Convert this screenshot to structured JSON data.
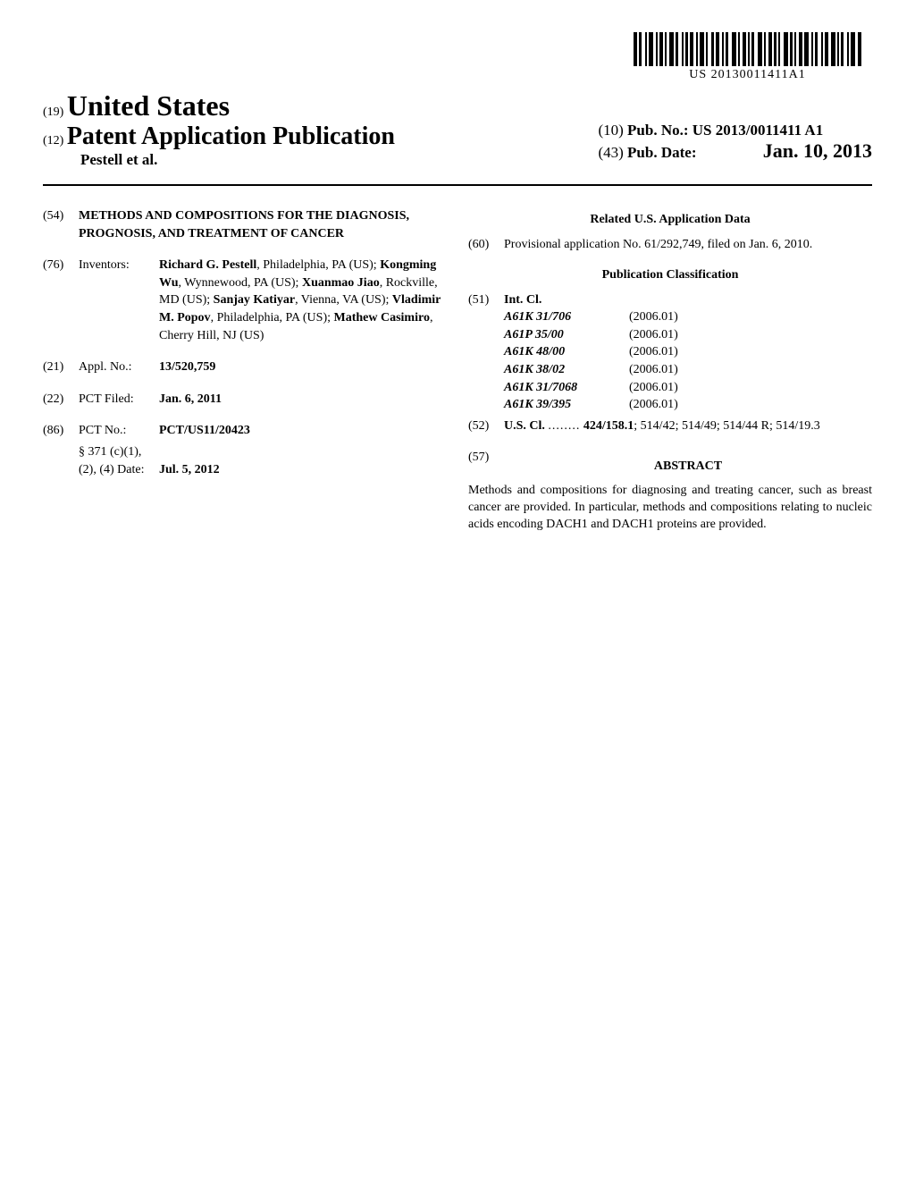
{
  "barcode": {
    "text": "US 20130011411A1"
  },
  "header": {
    "country_code": "(19)",
    "country_name": "United States",
    "pub_type_code": "(12)",
    "pub_type": "Patent Application Publication",
    "authors": "Pestell et al.",
    "pub_no_code": "(10)",
    "pub_no_label": "Pub. No.:",
    "pub_no": "US 2013/0011411 A1",
    "pub_date_code": "(43)",
    "pub_date_label": "Pub. Date:",
    "pub_date": "Jan. 10, 2013"
  },
  "left": {
    "title_code": "(54)",
    "title": "METHODS AND COMPOSITIONS FOR THE DIAGNOSIS, PROGNOSIS, AND TREATMENT OF CANCER",
    "inventors_code": "(76)",
    "inventors_label": "Inventors:",
    "inventors": [
      {
        "name": "Richard G. Pestell",
        "loc": "Philadelphia, PA (US)"
      },
      {
        "name": "Kongming Wu",
        "loc": "Wynnewood, PA (US)"
      },
      {
        "name": "Xuanmao Jiao",
        "loc": "Rockville, MD (US)"
      },
      {
        "name": "Sanjay Katiyar",
        "loc": "Vienna, VA (US)"
      },
      {
        "name": "Vladimir M. Popov",
        "loc": "Philadelphia, PA (US)"
      },
      {
        "name": "Mathew Casimiro",
        "loc": "Cherry Hill, NJ (US)"
      }
    ],
    "appl_code": "(21)",
    "appl_label": "Appl. No.:",
    "appl_no": "13/520,759",
    "pct_filed_code": "(22)",
    "pct_filed_label": "PCT Filed:",
    "pct_filed": "Jan. 6, 2011",
    "pct_no_code": "(86)",
    "pct_no_label": "PCT No.:",
    "pct_no": "PCT/US11/20423",
    "sect_371_label": "§ 371 (c)(1),",
    "sect_371_sub": "(2), (4) Date:",
    "sect_371_date": "Jul. 5, 2012"
  },
  "right": {
    "related_heading": "Related U.S. Application Data",
    "related_code": "(60)",
    "related_text": "Provisional application No. 61/292,749, filed on Jan. 6, 2010.",
    "class_heading": "Publication Classification",
    "intcl_code": "(51)",
    "intcl_label": "Int. Cl.",
    "intcl": [
      {
        "code": "A61K 31/706",
        "date": "(2006.01)"
      },
      {
        "code": "A61P 35/00",
        "date": "(2006.01)"
      },
      {
        "code": "A61K 48/00",
        "date": "(2006.01)"
      },
      {
        "code": "A61K 38/02",
        "date": "(2006.01)"
      },
      {
        "code": "A61K 31/7068",
        "date": "(2006.01)"
      },
      {
        "code": "A61K 39/395",
        "date": "(2006.01)"
      }
    ],
    "uscl_code": "(52)",
    "uscl_label": "U.S. Cl.",
    "uscl_dots": "........",
    "uscl_text1": "424/158.1",
    "uscl_text2": "; 514/42; 514/49; 514/44 R; 514/19.3",
    "abstract_code": "(57)",
    "abstract_heading": "ABSTRACT",
    "abstract_text": "Methods and compositions for diagnosing and treating cancer, such as breast cancer are provided. In particular, methods and compositions relating to nucleic acids encoding DACH1 and DACH1 proteins are provided."
  }
}
